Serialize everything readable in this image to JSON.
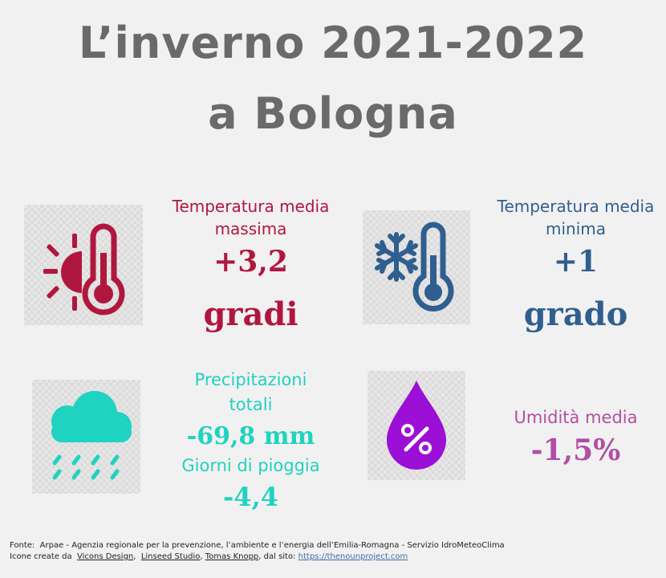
{
  "title": {
    "line1": "L’inverno 2021-2022",
    "line2": "a Bologna"
  },
  "colors": {
    "title": "#6a6a6a",
    "max_temp": "#b0173f",
    "min_temp": "#2f5f8f",
    "precip": "#1ed3c0",
    "humidity": "#b04fa5",
    "humidity_icon": "#9b0fd6"
  },
  "max_temp": {
    "icon": "sun-thermometer-icon",
    "label_line1": "Temperatura media",
    "label_line2": "massima",
    "value": "+3,2",
    "unit": "gradi"
  },
  "min_temp": {
    "icon": "snowflake-thermometer-icon",
    "label_line1": "Temperatura media",
    "label_line2": "minima",
    "value": "+1",
    "unit": "grado"
  },
  "precip": {
    "icon": "rain-cloud-icon",
    "label_line1": "Precipitazioni",
    "label_line2": "totali",
    "value": "-69,8 mm",
    "days_label": "Giorni di pioggia",
    "days_value": "-4,4"
  },
  "humidity": {
    "icon": "humidity-drop-icon",
    "label": "Umidità media",
    "value": "-1,5%"
  },
  "footer": {
    "source_prefix": "Fonte:",
    "source_text": "Arpae - Agenzia regionale per la prevenzione, l’ambiente e l’energia dell’Emilia-Romagna - Servizio IdroMeteoClima",
    "icons_prefix": "Icone create da",
    "credit1": "Vicons Design",
    "credit2": "Linseed Studio",
    "credit3": "Tomas Knopp",
    "site_prefix": ", dal sito:",
    "site_link": "https://thenounproject.com"
  }
}
